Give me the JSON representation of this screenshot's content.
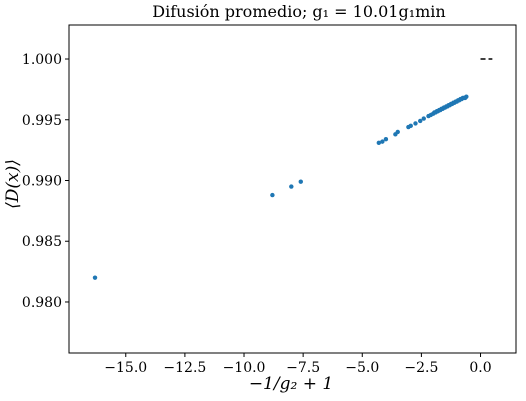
{
  "chart_data": {
    "type": "scatter",
    "title": "Difusión promedio; g₁ = 10.01g₁min",
    "xlabel": "−1/g₂ + 1",
    "ylabel": "⟨D(x)⟩",
    "xlim": [
      -17.4,
      1.5
    ],
    "ylim": [
      0.9758,
      1.0028
    ],
    "xticks": [
      -15.0,
      -12.5,
      -10.0,
      -7.5,
      -5.0,
      -2.5,
      0.0
    ],
    "xtick_labels": [
      "−15.0",
      "−12.5",
      "−10.0",
      "−7.5",
      "−5.0",
      "−2.5",
      "0.0"
    ],
    "yticks": [
      0.98,
      0.985,
      0.99,
      0.995,
      1.0
    ],
    "ytick_labels": [
      "0.980",
      "0.985",
      "0.990",
      "0.995",
      "1.000"
    ],
    "colors": {
      "points": "#1f77b4",
      "reference_line": "#000000"
    },
    "series": [
      {
        "x": [
          -16.3,
          -8.8,
          -8.0,
          -7.6,
          -4.3,
          -4.15,
          -4.0,
          -3.6,
          -3.5,
          -3.05,
          -2.95,
          -2.75,
          -2.55,
          -2.4,
          -2.2,
          -2.1,
          -2.0,
          -1.95,
          -1.9,
          -1.85,
          -1.8,
          -1.75,
          -1.7,
          -1.65,
          -1.6,
          -1.55,
          -1.5,
          -1.45,
          -1.4,
          -1.35,
          -1.3,
          -1.25,
          -1.2,
          -1.15,
          -1.1,
          -1.05,
          -1.0,
          -0.95,
          -0.9,
          -0.85,
          -0.8,
          -0.75,
          -0.7,
          -0.65,
          -0.6
        ],
        "y": [
          0.982,
          0.9888,
          0.9895,
          0.9899,
          0.9931,
          0.9932,
          0.9934,
          0.9938,
          0.994,
          0.9944,
          0.9945,
          0.9947,
          0.9949,
          0.9951,
          0.9953,
          0.9954,
          0.9955,
          0.9956,
          0.9956,
          0.9957,
          0.9957,
          0.9958,
          0.9958,
          0.9959,
          0.9959,
          0.996,
          0.996,
          0.9961,
          0.9961,
          0.9962,
          0.9962,
          0.9963,
          0.9963,
          0.9964,
          0.9964,
          0.9965,
          0.9965,
          0.9966,
          0.9966,
          0.9967,
          0.9967,
          0.9968,
          0.9968,
          0.9968,
          0.9969
        ]
      }
    ],
    "reference_line": {
      "x": [
        0.0,
        0.5
      ],
      "y": 1.0,
      "style": "dashed"
    },
    "grid": false,
    "legend": "none"
  }
}
